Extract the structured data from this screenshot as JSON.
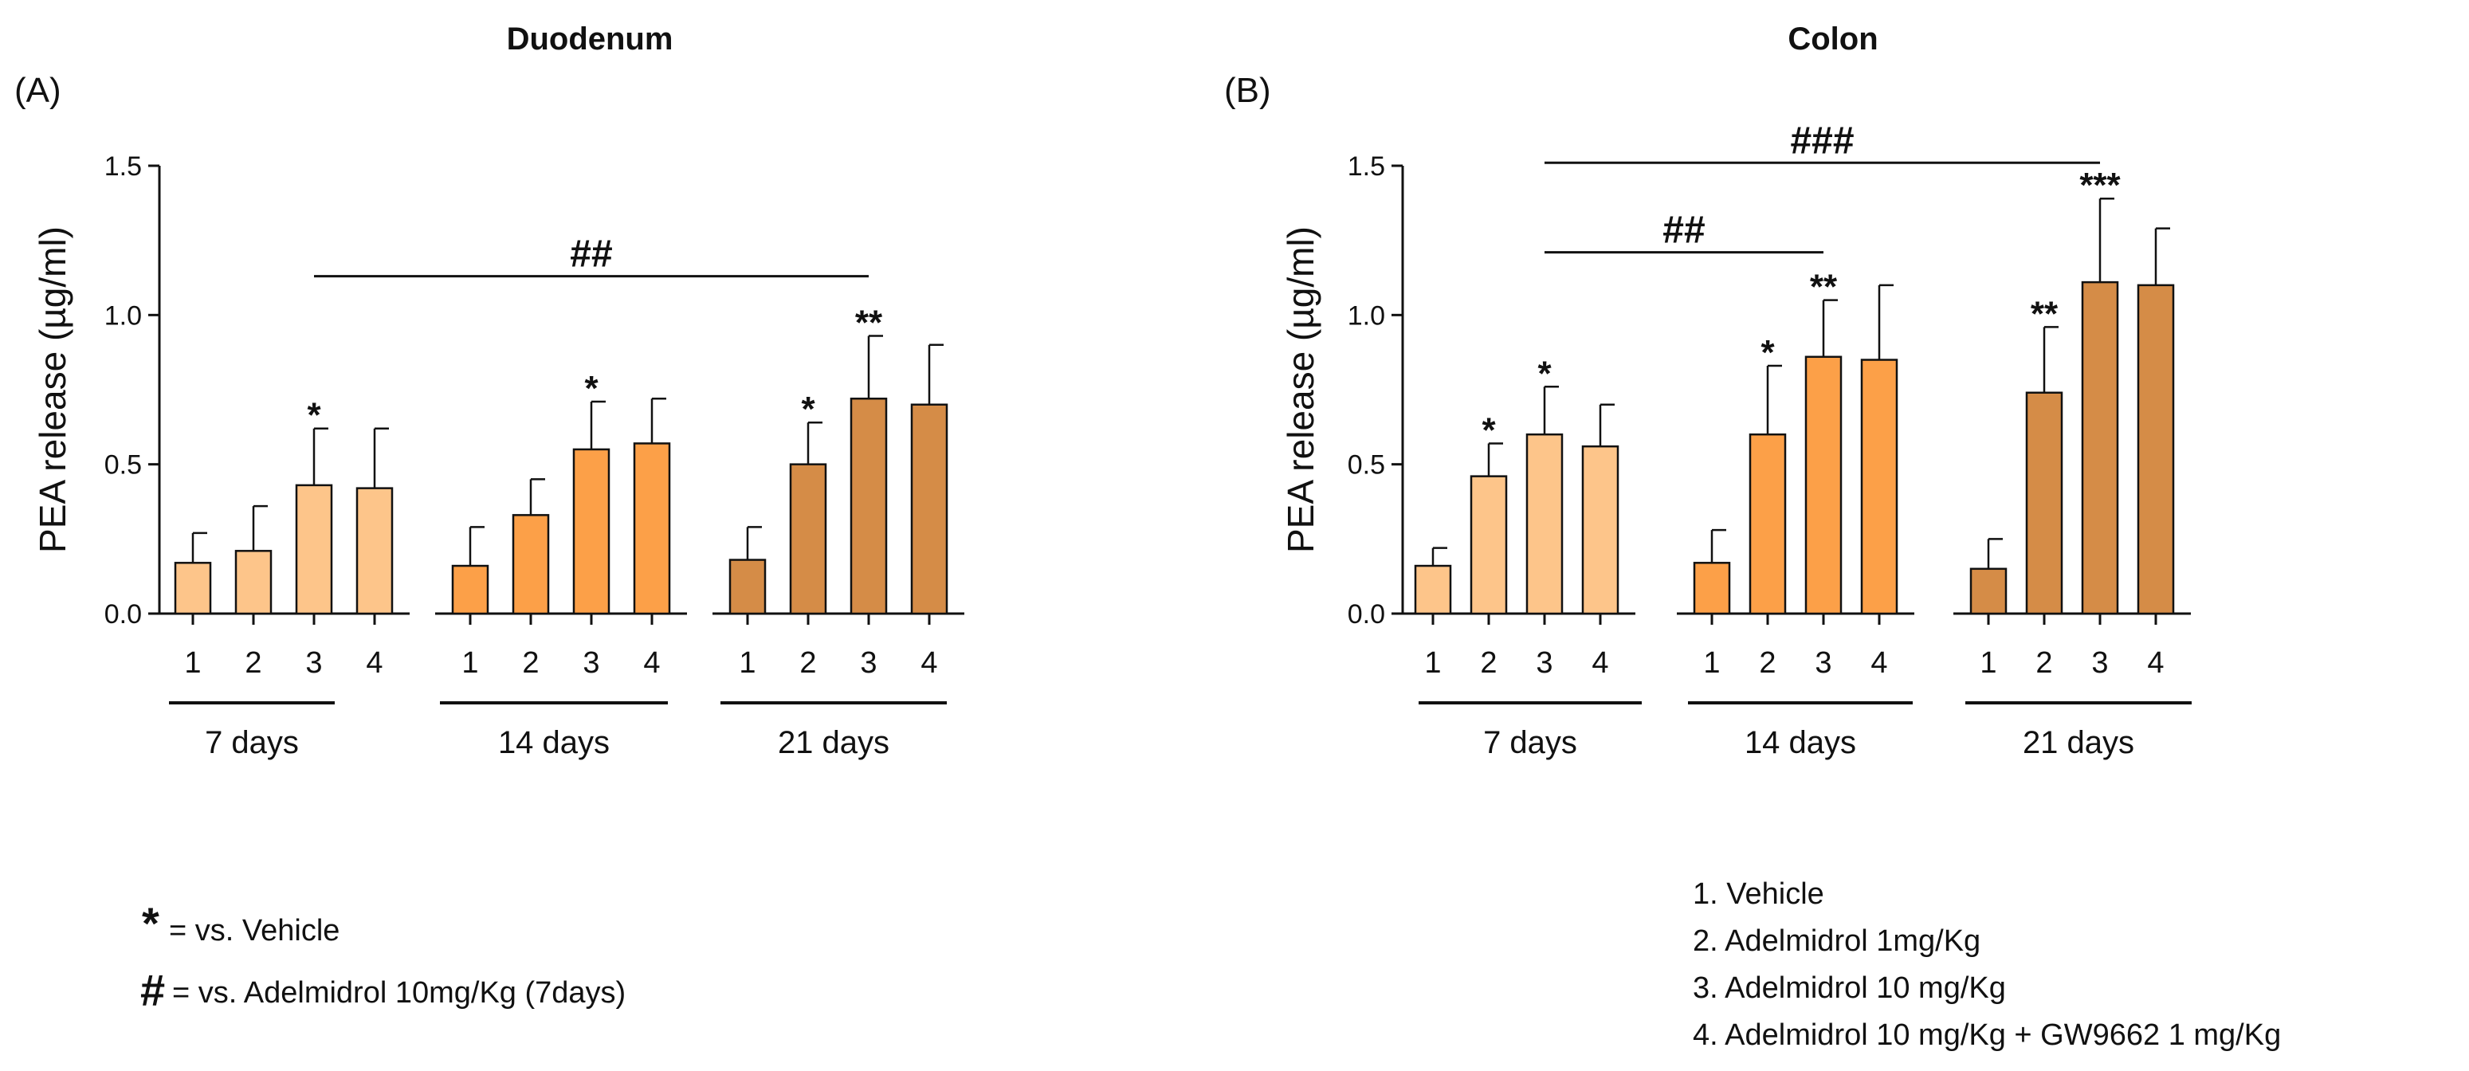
{
  "chart_data": [
    {
      "type": "bar",
      "panel_label": "(A)",
      "title": "Duodenum",
      "ylabel": "PEA release (µg/ml)",
      "ylim": [
        0,
        1.5
      ],
      "yticks": [
        "0.0",
        "0.5",
        "1.0",
        "1.5"
      ],
      "groups": [
        {
          "label": "7 days",
          "color": "#fdc58a",
          "categories": [
            "1",
            "2",
            "3",
            "4"
          ],
          "values": [
            0.17,
            0.21,
            0.43,
            0.42
          ],
          "errors": [
            0.1,
            0.15,
            0.19,
            0.2
          ],
          "stars": [
            "",
            "",
            "*",
            ""
          ]
        },
        {
          "label": "14 days",
          "color": "#fca048",
          "categories": [
            "1",
            "2",
            "3",
            "4"
          ],
          "values": [
            0.16,
            0.33,
            0.55,
            0.57
          ],
          "errors": [
            0.13,
            0.12,
            0.16,
            0.15
          ],
          "stars": [
            "",
            "",
            "*",
            ""
          ]
        },
        {
          "label": "21 days",
          "color": "#d58c47",
          "categories": [
            "1",
            "2",
            "3",
            "4"
          ],
          "values": [
            0.18,
            0.5,
            0.72,
            0.7
          ],
          "errors": [
            0.11,
            0.14,
            0.21,
            0.2
          ],
          "stars": [
            "",
            "*",
            "**",
            ""
          ]
        }
      ],
      "brackets": [
        {
          "label": "##",
          "from": [
            0,
            2
          ],
          "to": [
            2,
            2
          ],
          "y": 1.13
        }
      ]
    },
    {
      "type": "bar",
      "panel_label": "(B)",
      "title": "Colon",
      "ylabel": "PEA release (µg/ml)",
      "ylim": [
        0,
        1.5
      ],
      "yticks": [
        "0.0",
        "0.5",
        "1.0",
        "1.5"
      ],
      "groups": [
        {
          "label": "7 days",
          "color": "#fdc58a",
          "categories": [
            "1",
            "2",
            "3",
            "4"
          ],
          "values": [
            0.16,
            0.46,
            0.6,
            0.56
          ],
          "errors": [
            0.06,
            0.11,
            0.16,
            0.14
          ],
          "stars": [
            "",
            "*",
            "*",
            ""
          ]
        },
        {
          "label": "14 days",
          "color": "#fca048",
          "categories": [
            "1",
            "2",
            "3",
            "4"
          ],
          "values": [
            0.17,
            0.6,
            0.86,
            0.85
          ],
          "errors": [
            0.11,
            0.23,
            0.19,
            0.25
          ],
          "stars": [
            "",
            "*",
            "**",
            ""
          ]
        },
        {
          "label": "21 days",
          "color": "#d58c47",
          "categories": [
            "1",
            "2",
            "3",
            "4"
          ],
          "values": [
            0.15,
            0.74,
            1.11,
            1.1
          ],
          "errors": [
            0.1,
            0.22,
            0.28,
            0.19
          ],
          "stars": [
            "",
            "**",
            "***",
            ""
          ]
        }
      ],
      "brackets": [
        {
          "label": "###",
          "from": [
            0,
            2
          ],
          "to": [
            2,
            2
          ],
          "y": 1.51
        },
        {
          "label": "##",
          "from": [
            0,
            2
          ],
          "to": [
            1,
            2
          ],
          "y": 1.21
        }
      ]
    }
  ],
  "legend_left": [
    {
      "symbol": "*",
      "text": "=  vs. Vehicle"
    },
    {
      "symbol": "#",
      "text": "= vs. Adelmidrol 10mg/Kg (7days)"
    }
  ],
  "legend_right": [
    "1. Vehicle",
    "2. Adelmidrol  1mg/Kg",
    "3. Adelmidrol  10 mg/Kg",
    "4. Adelmidrol  10 mg/Kg + GW9662 1 mg/Kg"
  ]
}
